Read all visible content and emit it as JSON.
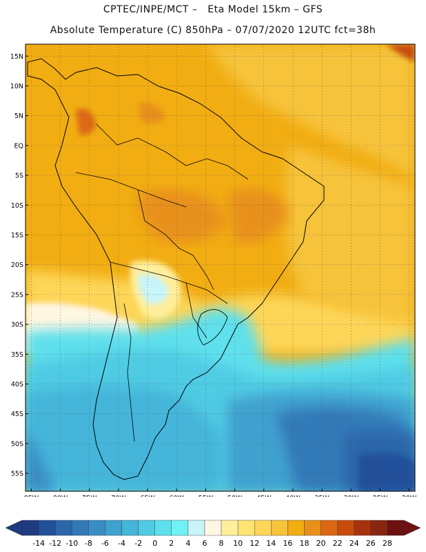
{
  "header": {
    "line1": "CPTEC/INPE/MCT –   Eta Model 15km – GFS",
    "line2": "Absolute Temperature (C) 850hPa – 07/07/2020 12UTC fct=38h"
  },
  "map": {
    "region": "South America",
    "lon_range": [
      -86,
      -19
    ],
    "lat_range": [
      -58,
      17
    ],
    "lat_labels": [
      "15N",
      "10N",
      "5N",
      "EQ",
      "5S",
      "10S",
      "15S",
      "20S",
      "25S",
      "30S",
      "35S",
      "40S",
      "45S",
      "50S",
      "55S"
    ],
    "lat_values": [
      15,
      10,
      5,
      0,
      -5,
      -10,
      -15,
      -20,
      -25,
      -30,
      -35,
      -40,
      -45,
      -50,
      -55
    ],
    "lon_labels": [
      "85W",
      "80W",
      "75W",
      "70W",
      "65W",
      "60W",
      "55W",
      "50W",
      "45W",
      "40W",
      "35W",
      "30W",
      "25W",
      "20W"
    ],
    "lon_values": [
      -85,
      -80,
      -75,
      -70,
      -65,
      -60,
      -55,
      -50,
      -45,
      -40,
      -35,
      -30,
      -25,
      -20
    ]
  },
  "colorbar": {
    "labels": [
      "-14",
      "-12",
      "-10",
      "-8",
      "-6",
      "-4",
      "-2",
      "0",
      "2",
      "4",
      "6",
      "8",
      "10",
      "12",
      "14",
      "16",
      "18",
      "20",
      "22",
      "24",
      "26",
      "28"
    ],
    "colors": [
      "#1f3b80",
      "#23509a",
      "#2b66aa",
      "#3379b8",
      "#3a8dc4",
      "#3fa1cf",
      "#45b5da",
      "#50cbe4",
      "#5ee0ec",
      "#6ff2f4",
      "#c8f4fa",
      "#fff6e2",
      "#ffef9c",
      "#ffe473",
      "#fdd659",
      "#f6c33b",
      "#f1ad12",
      "#e8901a",
      "#dd6712",
      "#c84b0e",
      "#a8320c",
      "#882711",
      "#6d1111"
    ]
  }
}
